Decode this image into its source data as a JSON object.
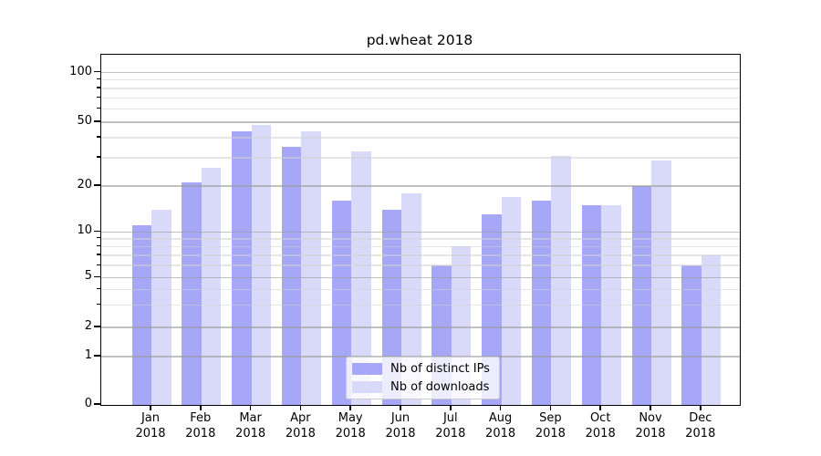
{
  "chart_data": {
    "type": "bar",
    "title": "pd.wheat 2018",
    "categories": [
      "Jan",
      "Feb",
      "Mar",
      "Apr",
      "May",
      "Jun",
      "Jul",
      "Aug",
      "Sep",
      "Oct",
      "Nov",
      "Dec"
    ],
    "year": "2018",
    "series": [
      {
        "name": "Nb of distinct IPs",
        "color": "#a7a7f7",
        "values": [
          11,
          21,
          44,
          35,
          16,
          14,
          6,
          13,
          16,
          15,
          20,
          6
        ]
      },
      {
        "name": "Nb of downloads",
        "color": "#d9d9f9",
        "values": [
          14,
          26,
          48,
          44,
          33,
          18,
          8,
          17,
          31,
          15,
          29,
          7
        ]
      }
    ],
    "yscale": "symlog",
    "yticks": [
      0,
      1,
      2,
      5,
      10,
      20,
      50,
      100
    ],
    "minor_yticks": [
      3,
      4,
      6,
      7,
      8,
      9,
      30,
      40,
      60,
      70,
      80,
      90
    ],
    "ylim": [
      0,
      128
    ],
    "grid": "both",
    "legend_position": "lower center"
  }
}
